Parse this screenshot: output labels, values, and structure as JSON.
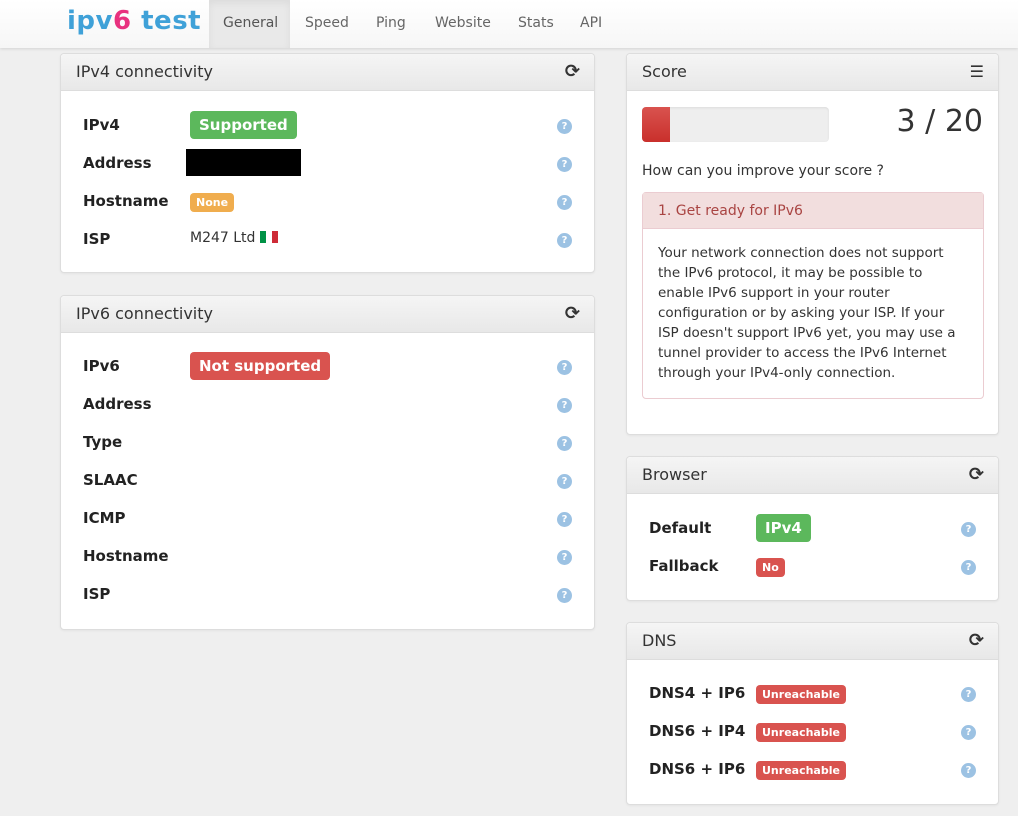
{
  "nav": {
    "logo_a": "ipv",
    "logo_b": "6",
    "logo_c": " test",
    "tabs": [
      "General",
      "Speed",
      "Ping",
      "Website",
      "Stats",
      "API"
    ],
    "active": "General"
  },
  "ipv4": {
    "title": "IPv4 connectivity",
    "refresh_icon": "refresh-icon",
    "rows": [
      {
        "label": "IPv4",
        "value": "Supported"
      },
      {
        "label": "Address",
        "value": ""
      },
      {
        "label": "Hostname",
        "value": "None"
      },
      {
        "label": "ISP",
        "value": "M247 Ltd"
      }
    ]
  },
  "ipv6": {
    "title": "IPv6 connectivity",
    "rows": [
      {
        "label": "IPv6",
        "value": "Not supported"
      },
      {
        "label": "Address"
      },
      {
        "label": "Type"
      },
      {
        "label": "SLAAC"
      },
      {
        "label": "ICMP"
      },
      {
        "label": "Hostname"
      },
      {
        "label": "ISP"
      }
    ]
  },
  "score": {
    "title": "Score",
    "value": "3 / 20",
    "progress_fraction": 0.15,
    "improve": "How can you improve your score ?",
    "tip_title": "1. Get ready for IPv6",
    "tip_body": "Your network connection does not support the IPv6 protocol, it may be possible to enable IPv6 support in your router configuration or by asking your ISP. If your ISP doesn't support IPv6 yet, you may use a tunnel provider to access the IPv6 Internet through your IPv4-only connection."
  },
  "browser": {
    "title": "Browser",
    "rows": [
      {
        "label": "Default",
        "value": "IPv4"
      },
      {
        "label": "Fallback",
        "value": "No"
      }
    ]
  },
  "dns": {
    "title": "DNS",
    "rows": [
      {
        "label": "DNS4 + IP6",
        "value": "Unreachable"
      },
      {
        "label": "DNS6 + IP4",
        "value": "Unreachable"
      },
      {
        "label": "DNS6 + IP6",
        "value": "Unreachable"
      }
    ]
  },
  "colors": {
    "success": "#5cb85c",
    "danger": "#d9534f",
    "warning": "#f0ad4e",
    "logo_blue": "#3fa1d8",
    "logo_pink": "#e8327f"
  }
}
